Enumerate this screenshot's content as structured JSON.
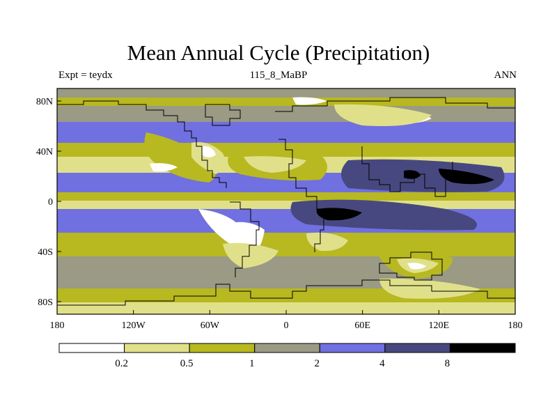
{
  "title": "Mean Annual Cycle (Precipitation)",
  "subtitle_left": "Expt = teydx",
  "subtitle_center": "115_8_MaBP",
  "subtitle_right": "ANN",
  "map": {
    "lon_ticks": [
      "180",
      "120W",
      "60W",
      "0",
      "60E",
      "120E",
      "180"
    ],
    "lon_values": [
      -180,
      -120,
      -60,
      0,
      60,
      120,
      180
    ],
    "lat_ticks": [
      "80N",
      "40N",
      "0",
      "40S",
      "80S"
    ],
    "lat_values": [
      80,
      40,
      0,
      -40,
      -80
    ],
    "lon_range": [
      -180,
      180
    ],
    "lat_range": [
      -90,
      90
    ]
  },
  "colorbar": {
    "colors": [
      "#ffffff",
      "#e0e08a",
      "#b8b820",
      "#9a9a85",
      "#7070e0",
      "#484880",
      "#000000"
    ],
    "labels": [
      "0.2",
      "0.5",
      "1",
      "2",
      "4",
      "8"
    ]
  },
  "colors": {
    "white": "#ffffff",
    "light_yellow": "#e0e08a",
    "olive": "#b8b820",
    "gray": "#9a9a85",
    "light_blue": "#7070e0",
    "dark_blue": "#484880",
    "black": "#000000"
  }
}
